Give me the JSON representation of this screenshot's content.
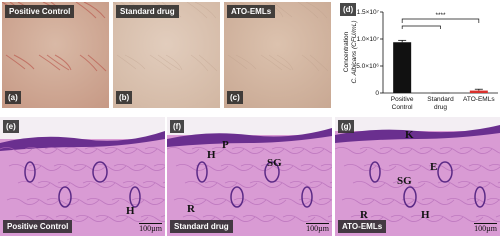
{
  "photos": [
    {
      "caption": "Positive Control",
      "label": "(a)"
    },
    {
      "caption": "Standard drug",
      "label": "(b)"
    },
    {
      "caption": "ATO-EMLs",
      "label": "(c)"
    }
  ],
  "chart_panel_label": "(d)",
  "chart_data": {
    "type": "bar",
    "categories": [
      "Positive Control",
      "Standard drug",
      "ATO-EMLs"
    ],
    "values": [
      9400000,
      50000,
      450000
    ],
    "errors": [
      350000,
      0,
      250000
    ],
    "colors": [
      "#111111",
      "#111111",
      "#d9302c"
    ],
    "y_label_lines": [
      "Concentration",
      "C. Albicans (CFU/mL)"
    ],
    "ylim": [
      0,
      15000000
    ],
    "yticks": [
      0,
      {
        "value": 5000000,
        "label": "5.0×10⁶"
      },
      {
        "value": 10000000,
        "label": "1.0×10⁷"
      },
      {
        "value": 15000000,
        "label": "1.5×10⁷"
      }
    ],
    "significance_label": "****"
  },
  "histology": [
    {
      "label": "(e)",
      "caption": "Positive Control",
      "scale": "100µm",
      "annotations": [
        "H"
      ]
    },
    {
      "label": "(f)",
      "caption": "Standard drug",
      "scale": "100µm",
      "annotations": [
        "H",
        "P",
        "SG",
        "R"
      ]
    },
    {
      "label": "(g)",
      "caption": "ATO-EMLs",
      "scale": "100µm",
      "annotations": [
        "K",
        "E",
        "SG",
        "R",
        "H"
      ]
    }
  ]
}
